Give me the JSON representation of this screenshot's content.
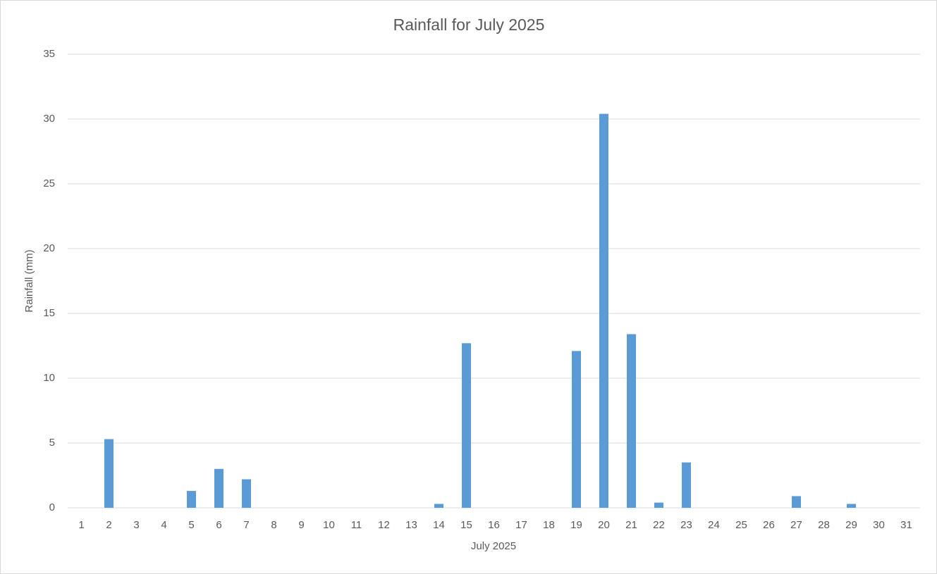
{
  "chart_data": {
    "type": "bar",
    "title": "Rainfall for July 2025",
    "x_label": "July 2025",
    "y_label": "Rainfall (mm)",
    "categories": [
      "1",
      "2",
      "3",
      "4",
      "5",
      "6",
      "7",
      "8",
      "9",
      "10",
      "11",
      "12",
      "13",
      "14",
      "15",
      "16",
      "17",
      "18",
      "19",
      "20",
      "21",
      "22",
      "23",
      "24",
      "25",
      "26",
      "27",
      "28",
      "29",
      "30",
      "31"
    ],
    "values": [
      0,
      5.3,
      0,
      0,
      1.3,
      3.0,
      2.2,
      0,
      0,
      0,
      0,
      0,
      0,
      0.3,
      12.7,
      0,
      0,
      0,
      12.1,
      30.4,
      13.4,
      0.4,
      3.5,
      0,
      0,
      0,
      0.9,
      0,
      0.3,
      0,
      0
    ],
    "color": "#5b9bd5",
    "ylim": [
      0,
      35
    ],
    "yticks": [
      0,
      5,
      10,
      15,
      20,
      25,
      30,
      35
    ],
    "grid": true
  }
}
